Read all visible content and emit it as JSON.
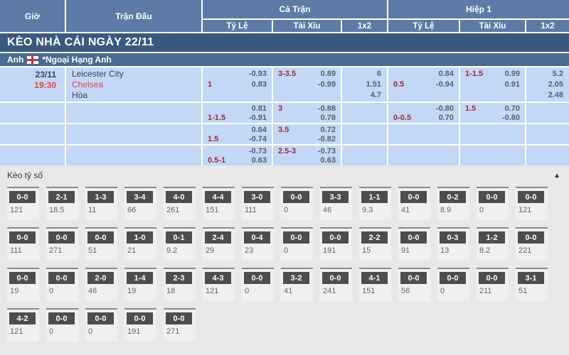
{
  "colors": {
    "header_blue": "#5d7ba6",
    "title_bar_blue": "#3a597e",
    "league_bar_blue": "#4a6b93",
    "row_blue": "#c3d7f6",
    "time_red": "#e84545",
    "handicap_red": "#9e2b38",
    "score_header_gray": "#4d4d4d",
    "section_gray": "#e8e8e8"
  },
  "table": {
    "headers": {
      "time": "Giờ",
      "match": "Trận Đấu",
      "full_time": "Cả Trận",
      "first_half": "Hiệp 1",
      "handicap": "Tỷ Lệ",
      "over_under": "Tài Xỉu",
      "one_x_two": "1x2"
    },
    "section_title": "KÈO NHÀ CÁI NGÀY 22/11",
    "league": {
      "country": "Anh",
      "flag_icon": "england-flag",
      "name": "*Ngoại Hạng Anh"
    }
  },
  "match_rows": [
    {
      "date": "23/11",
      "time": "19:30",
      "teams": [
        {
          "name": "Leicester City",
          "style": "dark"
        },
        {
          "name": "Chelsea",
          "style": "red"
        },
        {
          "name": "Hòa",
          "style": "dark"
        }
      ],
      "ft_hdp": {
        "l1": "",
        "r1": "-0.93",
        "l2": "1",
        "r2": "0.83"
      },
      "ft_ou": {
        "l1": "3-3.5",
        "r1": "0.89",
        "l2": "",
        "r2": "-0.99"
      },
      "ft_1x2": [
        "6",
        "1.51",
        "4.7"
      ],
      "h1_hdp": {
        "l1": "",
        "r1": "0.84",
        "l2": "0.5",
        "r2": "-0.94"
      },
      "h1_ou": {
        "l1": "1-1.5",
        "r1": "0.99",
        "l2": "",
        "r2": "0.91"
      },
      "h1_1x2": [
        "5.2",
        "2.05",
        "2.48"
      ]
    },
    {
      "date": "",
      "time": "",
      "teams": [],
      "ft_hdp": {
        "l1": "",
        "r1": "0.81",
        "l2": "1-1.5",
        "r2": "-0.91"
      },
      "ft_ou": {
        "l1": "3",
        "r1": "-0.88",
        "l2": "",
        "r2": "0.78"
      },
      "ft_1x2": [],
      "h1_hdp": {
        "l1": "",
        "r1": "-0.80",
        "l2": "0-0.5",
        "r2": "0.70"
      },
      "h1_ou": {
        "l1": "1.5",
        "r1": "0.70",
        "l2": "",
        "r2": "-0.80"
      },
      "h1_1x2": []
    },
    {
      "date": "",
      "time": "",
      "teams": [],
      "ft_hdp": {
        "l1": "",
        "r1": "0.64",
        "l2": "1.5",
        "r2": "-0.74"
      },
      "ft_ou": {
        "l1": "3.5",
        "r1": "0.72",
        "l2": "",
        "r2": "-0.82"
      },
      "ft_1x2": [],
      "h1_hdp": null,
      "h1_ou": null,
      "h1_1x2": []
    },
    {
      "date": "",
      "time": "",
      "teams": [],
      "ft_hdp": {
        "l1": "",
        "r1": "-0.73",
        "l2": "0.5-1",
        "r2": "0.63"
      },
      "ft_ou": {
        "l1": "2.5-3",
        "r1": "-0.73",
        "l2": "",
        "r2": "0.63"
      },
      "ft_1x2": [],
      "h1_hdp": null,
      "h1_ou": null,
      "h1_1x2": []
    }
  ],
  "score_section": {
    "title": "Kèo tỷ số",
    "collapse_icon": "▲",
    "rows": [
      [
        {
          "score": "0-0",
          "odds": "121"
        },
        {
          "score": "2-1",
          "odds": "18.5"
        },
        {
          "score": "1-3",
          "odds": "11"
        },
        {
          "score": "3-4",
          "odds": "66"
        },
        {
          "score": "4-0",
          "odds": "261"
        },
        {
          "score": "4-4",
          "odds": "151"
        },
        {
          "score": "3-0",
          "odds": "111"
        },
        {
          "score": "0-0",
          "odds": "0"
        },
        {
          "score": "3-3",
          "odds": "46"
        },
        {
          "score": "1-1",
          "odds": "9.3"
        },
        {
          "score": "0-0",
          "odds": "41"
        },
        {
          "score": "0-2",
          "odds": "8.9"
        },
        {
          "score": "0-0",
          "odds": "0"
        },
        {
          "score": "0-0",
          "odds": "121"
        }
      ],
      [
        {
          "score": "0-0",
          "odds": "111"
        },
        {
          "score": "0-0",
          "odds": "271"
        },
        {
          "score": "0-0",
          "odds": "51"
        },
        {
          "score": "1-0",
          "odds": "21"
        },
        {
          "score": "0-1",
          "odds": "9.2"
        },
        {
          "score": "2-4",
          "odds": "29"
        },
        {
          "score": "0-4",
          "odds": "23"
        },
        {
          "score": "0-0",
          "odds": "0"
        },
        {
          "score": "0-0",
          "odds": "191"
        },
        {
          "score": "2-2",
          "odds": "15"
        },
        {
          "score": "0-0",
          "odds": "91"
        },
        {
          "score": "0-3",
          "odds": "13"
        },
        {
          "score": "1-2",
          "odds": "8.2"
        },
        {
          "score": "0-0",
          "odds": "221"
        }
      ],
      [
        {
          "score": "0-0",
          "odds": "19"
        },
        {
          "score": "0-0",
          "odds": "0"
        },
        {
          "score": "2-0",
          "odds": "46"
        },
        {
          "score": "1-4",
          "odds": "19"
        },
        {
          "score": "2-3",
          "odds": "18"
        },
        {
          "score": "4-3",
          "odds": "121"
        },
        {
          "score": "0-0",
          "odds": "0"
        },
        {
          "score": "3-2",
          "odds": "41"
        },
        {
          "score": "0-0",
          "odds": "241"
        },
        {
          "score": "4-1",
          "odds": "151"
        },
        {
          "score": "0-0",
          "odds": "56"
        },
        {
          "score": "0-0",
          "odds": "0"
        },
        {
          "score": "0-0",
          "odds": "211"
        },
        {
          "score": "3-1",
          "odds": "51"
        }
      ],
      [
        {
          "score": "4-2",
          "odds": "121"
        },
        {
          "score": "0-0",
          "odds": "0"
        },
        {
          "score": "0-0",
          "odds": "0"
        },
        {
          "score": "0-0",
          "odds": "191"
        },
        {
          "score": "0-0",
          "odds": "271"
        }
      ]
    ]
  }
}
